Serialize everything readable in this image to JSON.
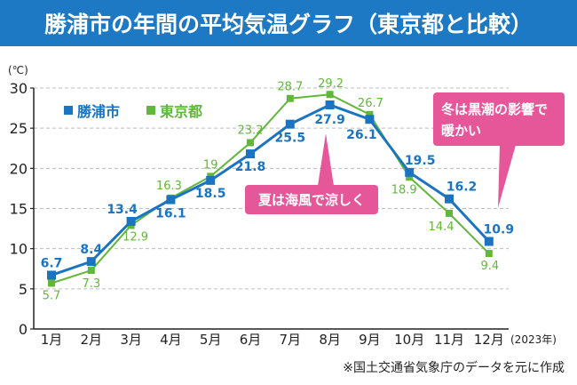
{
  "chart_data": {
    "type": "line",
    "title": "勝浦市の年間の平均気温グラフ（東京都と比較）",
    "xlabel": "",
    "ylabel": "(℃)",
    "x_note": "(2023年)",
    "categories": [
      "1月",
      "2月",
      "3月",
      "4月",
      "5月",
      "6月",
      "7月",
      "8月",
      "9月",
      "10月",
      "11月",
      "12月"
    ],
    "ylim": [
      0,
      30
    ],
    "yticks": [
      0,
      5,
      10,
      15,
      20,
      25,
      30
    ],
    "grid": true,
    "legend": "top-left",
    "series": [
      {
        "name": "勝浦市",
        "color": "#1b74c2",
        "values": [
          6.7,
          8.4,
          13.4,
          16.1,
          18.5,
          21.8,
          25.5,
          27.9,
          26.1,
          19.5,
          16.2,
          10.9
        ]
      },
      {
        "name": "東京都",
        "color": "#62b73a",
        "values": [
          5.7,
          7.3,
          12.9,
          16.3,
          19,
          23.2,
          28.7,
          29.2,
          26.7,
          18.9,
          14.4,
          9.4
        ]
      }
    ],
    "annotations": [
      {
        "lines": [
          "夏は海風で涼しく"
        ]
      },
      {
        "lines": [
          "冬は黒潮の影響で",
          "暖かい"
        ]
      }
    ]
  },
  "source_note": "※国土交通省気象庁のデータを元に作成",
  "colors": {
    "banner": "#1d79c3",
    "callout": "#e6579a",
    "grid": "#bdbdbd",
    "axis": "#222222"
  }
}
